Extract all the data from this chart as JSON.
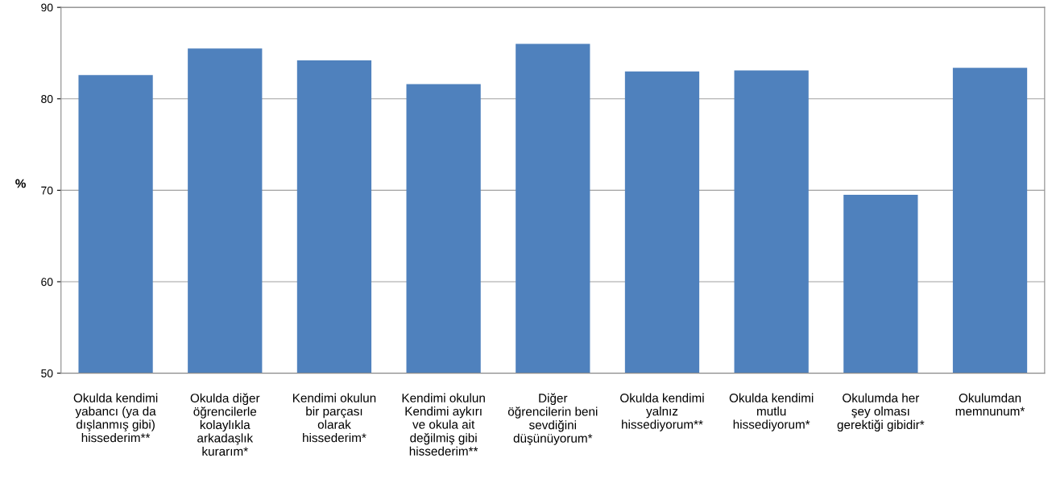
{
  "chart_data": {
    "type": "bar",
    "ylabel": "%",
    "categories": [
      "Okulda kendimi\nyabancı (ya da\ndışlanmış gibi)\nhissederim**",
      "Okulda diğer\nöğrencilerle\nkolaylıkla\narkadaşlık\nkurarım*",
      "Kendimi okulun\nbir parçası\nolarak\nhissederim*",
      "Kendimi okulun\nKendimi aykırı\nve okula ait\ndeğilmiş gibi\nhissederim**",
      "Diğer\nöğrencilerin beni\nsevdiğini\ndüşünüyorum*",
      "Okulda kendimi\nyalnız\nhissediyorum**",
      "Okulda kendimi\nmutlu\nhissediyorum*",
      "Okulumda her\nşey olması\ngerektiği gibidir*",
      "Okulumdan\nmemnunum*"
    ],
    "values": [
      82.6,
      85.5,
      84.2,
      81.6,
      86.0,
      83.0,
      83.1,
      69.5,
      83.4
    ],
    "color": "#4f81bd",
    "ylim": [
      50,
      90
    ],
    "yticks": [
      50,
      60,
      70,
      80,
      90
    ],
    "grid": "y"
  }
}
